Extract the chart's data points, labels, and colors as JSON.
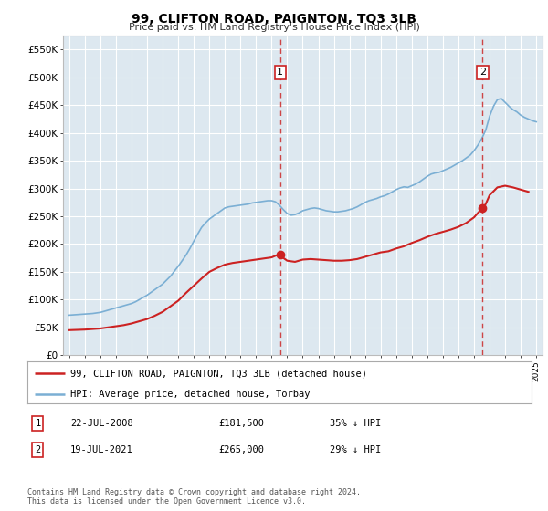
{
  "title": "99, CLIFTON ROAD, PAIGNTON, TQ3 3LB",
  "subtitle": "Price paid vs. HM Land Registry's House Price Index (HPI)",
  "background_color": "#dde8f0",
  "grid_color": "#ffffff",
  "fig_facecolor": "#ffffff",
  "ylim": [
    0,
    575000
  ],
  "yticks": [
    0,
    50000,
    100000,
    150000,
    200000,
    250000,
    300000,
    350000,
    400000,
    450000,
    500000,
    550000
  ],
  "ytick_labels": [
    "£0",
    "£50K",
    "£100K",
    "£150K",
    "£200K",
    "£250K",
    "£300K",
    "£350K",
    "£400K",
    "£450K",
    "£500K",
    "£550K"
  ],
  "xlim_start": 1994.6,
  "xlim_end": 2025.4,
  "transaction1_x": 2008.55,
  "transaction1_y": 181500,
  "transaction1_label": "22-JUL-2008",
  "transaction1_price": "£181,500",
  "transaction1_hpi": "35% ↓ HPI",
  "transaction2_x": 2021.55,
  "transaction2_y": 265000,
  "transaction2_label": "19-JUL-2021",
  "transaction2_price": "£265,000",
  "transaction2_hpi": "29% ↓ HPI",
  "legend_line1": "99, CLIFTON ROAD, PAIGNTON, TQ3 3LB (detached house)",
  "legend_line2": "HPI: Average price, detached house, Torbay",
  "footer": "Contains HM Land Registry data © Crown copyright and database right 2024.\nThis data is licensed under the Open Government Licence v3.0.",
  "hpi_years": [
    1995,
    1995.25,
    1995.5,
    1995.75,
    1996,
    1996.25,
    1996.5,
    1996.75,
    1997,
    1997.25,
    1997.5,
    1997.75,
    1998,
    1998.25,
    1998.5,
    1998.75,
    1999,
    1999.25,
    1999.5,
    1999.75,
    2000,
    2000.25,
    2000.5,
    2000.75,
    2001,
    2001.25,
    2001.5,
    2001.75,
    2002,
    2002.25,
    2002.5,
    2002.75,
    2003,
    2003.25,
    2003.5,
    2003.75,
    2004,
    2004.25,
    2004.5,
    2004.75,
    2005,
    2005.25,
    2005.5,
    2005.75,
    2006,
    2006.25,
    2006.5,
    2006.75,
    2007,
    2007.25,
    2007.5,
    2007.75,
    2008,
    2008.25,
    2008.5,
    2008.75,
    2009,
    2009.25,
    2009.5,
    2009.75,
    2010,
    2010.25,
    2010.5,
    2010.75,
    2011,
    2011.25,
    2011.5,
    2011.75,
    2012,
    2012.25,
    2012.5,
    2012.75,
    2013,
    2013.25,
    2013.5,
    2013.75,
    2014,
    2014.25,
    2014.5,
    2014.75,
    2015,
    2015.25,
    2015.5,
    2015.75,
    2016,
    2016.25,
    2016.5,
    2016.75,
    2017,
    2017.25,
    2017.5,
    2017.75,
    2018,
    2018.25,
    2018.5,
    2018.75,
    2019,
    2019.25,
    2019.5,
    2019.75,
    2020,
    2020.25,
    2020.5,
    2020.75,
    2021,
    2021.25,
    2021.5,
    2021.75,
    2022,
    2022.25,
    2022.5,
    2022.75,
    2023,
    2023.25,
    2023.5,
    2023.75,
    2024,
    2024.25,
    2024.5,
    2024.75,
    2025
  ],
  "hpi_values": [
    72000,
    72500,
    73000,
    73500,
    74000,
    74500,
    75000,
    76000,
    77000,
    79000,
    81000,
    83000,
    85000,
    87000,
    89000,
    91000,
    93000,
    96000,
    100000,
    104000,
    108000,
    113000,
    118000,
    123000,
    128000,
    135000,
    142000,
    151000,
    160000,
    170000,
    180000,
    192000,
    205000,
    218000,
    230000,
    238000,
    245000,
    250000,
    255000,
    260000,
    265000,
    267000,
    268000,
    269000,
    270000,
    271000,
    272000,
    274000,
    275000,
    276000,
    277000,
    278000,
    278000,
    276000,
    270000,
    262000,
    255000,
    252000,
    253000,
    256000,
    260000,
    262000,
    264000,
    265000,
    264000,
    262000,
    260000,
    259000,
    258000,
    258000,
    259000,
    260000,
    262000,
    264000,
    267000,
    271000,
    275000,
    278000,
    280000,
    282000,
    285000,
    287000,
    290000,
    294000,
    298000,
    301000,
    303000,
    302000,
    305000,
    308000,
    312000,
    317000,
    322000,
    326000,
    328000,
    329000,
    332000,
    335000,
    338000,
    342000,
    346000,
    350000,
    355000,
    360000,
    368000,
    378000,
    390000,
    405000,
    430000,
    448000,
    460000,
    462000,
    455000,
    448000,
    442000,
    438000,
    432000,
    428000,
    425000,
    422000,
    420000
  ],
  "property_years": [
    1995,
    1995.5,
    1996,
    1996.5,
    1997,
    1997.5,
    1998,
    1998.5,
    1999,
    1999.5,
    2000,
    2000.5,
    2001,
    2001.5,
    2002,
    2002.5,
    2003,
    2003.5,
    2004,
    2004.5,
    2005,
    2005.5,
    2006,
    2006.5,
    2007,
    2007.5,
    2008,
    2008.25,
    2008.55,
    2008.75,
    2009,
    2009.5,
    2010,
    2010.5,
    2011,
    2011.5,
    2012,
    2012.5,
    2013,
    2013.5,
    2014,
    2014.5,
    2015,
    2015.5,
    2016,
    2016.5,
    2017,
    2017.5,
    2018,
    2018.5,
    2019,
    2019.5,
    2020,
    2020.5,
    2021,
    2021.25,
    2021.55,
    2021.75,
    2022,
    2022.5,
    2023,
    2023.5,
    2024,
    2024.5
  ],
  "property_values": [
    45000,
    45500,
    46000,
    47000,
    48000,
    50000,
    52000,
    54000,
    57000,
    61000,
    65000,
    71000,
    78000,
    88000,
    98000,
    112000,
    125000,
    138000,
    150000,
    157000,
    163000,
    166000,
    168000,
    170000,
    172000,
    174000,
    176000,
    179000,
    181500,
    175000,
    170000,
    168000,
    172000,
    173000,
    172000,
    171000,
    170000,
    170000,
    171000,
    173000,
    177000,
    181000,
    185000,
    187000,
    192000,
    196000,
    202000,
    207000,
    213000,
    218000,
    222000,
    226000,
    231000,
    238000,
    248000,
    256000,
    265000,
    272000,
    288000,
    302000,
    305000,
    302000,
    298000,
    294000
  ],
  "red_color": "#cc2222",
  "blue_color": "#7bafd4",
  "marker_box_color": "#cc2222",
  "title_fontsize": 10,
  "subtitle_fontsize": 8
}
